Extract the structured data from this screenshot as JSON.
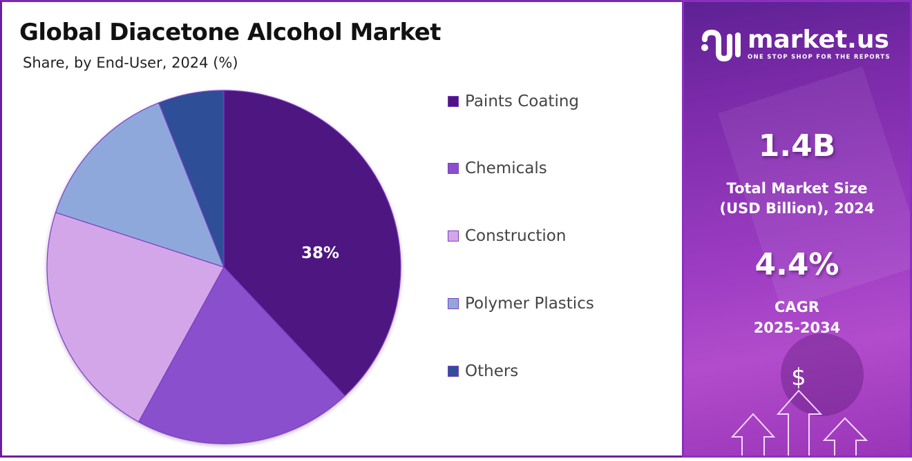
{
  "header": {
    "title": "Global Diacetone Alcohol Market",
    "subtitle": "Share, by End-User, 2024 (%)"
  },
  "chart_data": {
    "type": "pie",
    "title": "Global Diacetone Alcohol Market",
    "subtitle": "Share, by End-User, 2024 (%)",
    "categories": [
      "Paints Coating",
      "Chemicals",
      "Construction",
      "Polymer Plastics",
      "Others"
    ],
    "values": [
      38,
      20,
      22,
      14,
      6
    ],
    "colors": [
      "#4e1580",
      "#8a4fcc",
      "#d3a6ea",
      "#8fa8dc",
      "#2e5098"
    ],
    "data_labels": [
      {
        "category": "Paints Coating",
        "text": "38%"
      }
    ],
    "start_angle_deg": 0,
    "direction": "clockwise",
    "legend_position": "right"
  },
  "pie": {
    "center_label": "38%"
  },
  "legend": {
    "items": [
      {
        "label": "Paints Coating",
        "color": "#4e1580"
      },
      {
        "label": "Chemicals",
        "color": "#8a4fcc"
      },
      {
        "label": "Construction",
        "color": "#d3a6ea"
      },
      {
        "label": "Polymer Plastics",
        "color": "#8fa8dc"
      },
      {
        "label": "Others",
        "color": "#2e5098"
      }
    ]
  },
  "sidebar": {
    "brand_name": "market.us",
    "brand_tagline": "ONE STOP SHOP FOR THE REPORTS",
    "market_size_value": "1.4B",
    "market_size_label_line1": "Total Market Size",
    "market_size_label_line2": "(USD Billion), 2024",
    "cagr_value": "4.4%",
    "cagr_label_line1": "CAGR",
    "cagr_label_line2": "2025-2034",
    "growth_icon_symbol": "$"
  },
  "colors": {
    "accent": "#7a2bb0",
    "panel_top": "#5d2194",
    "panel_mid": "#b24ccc"
  }
}
